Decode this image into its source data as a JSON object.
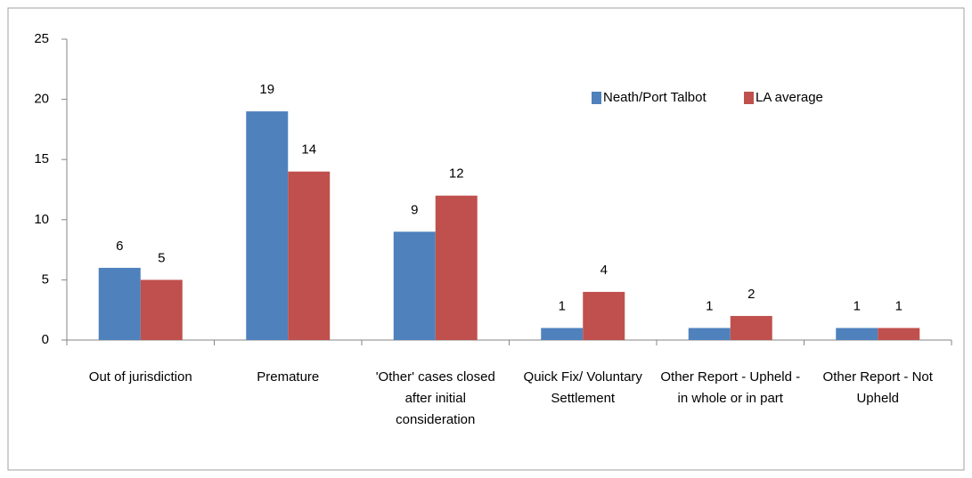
{
  "chart_data": {
    "type": "bar",
    "categories": [
      "Out of jurisdiction",
      "Premature",
      "'Other' cases closed after initial consideration",
      "Quick Fix/ Voluntary Settlement",
      "Other Report - Upheld - in whole or in part",
      "Other Report - Not Upheld"
    ],
    "series": [
      {
        "name": "Neath/Port Talbot",
        "color": "#4f81bd",
        "values": [
          6,
          19,
          9,
          1,
          1,
          1
        ]
      },
      {
        "name": "LA average",
        "color": "#c0504d",
        "values": [
          5,
          14,
          12,
          4,
          2,
          1
        ]
      }
    ],
    "ylim": [
      0,
      25
    ],
    "yticks": [
      0,
      5,
      10,
      15,
      20,
      25
    ],
    "legend": "top-right"
  }
}
